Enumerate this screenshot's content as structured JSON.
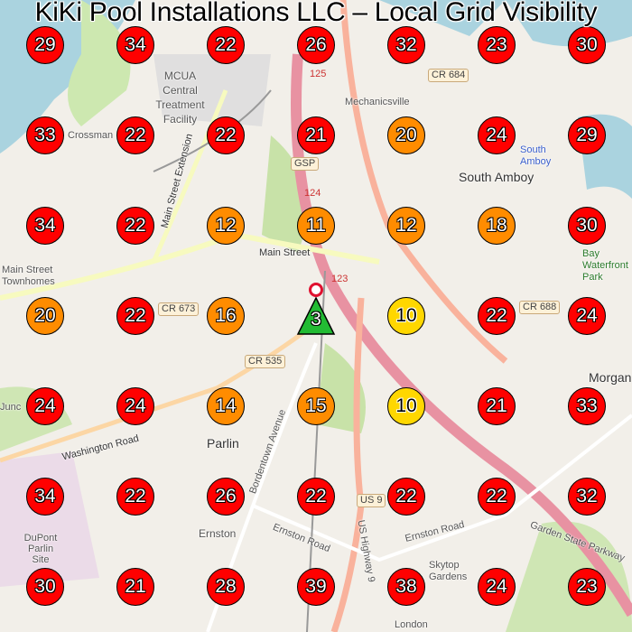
{
  "title": "KiKi Pool Installations LLC – Local Grid Visibility",
  "colors": {
    "red": "#ff0000",
    "orange": "#ff8c00",
    "yellow": "#ffd700",
    "green": "#22bb33",
    "pin": "#e0102f",
    "water": "#aad3df",
    "land": "#f2efe9"
  },
  "grid": [
    [
      29,
      34,
      22,
      26,
      32,
      23,
      30
    ],
    [
      33,
      22,
      22,
      21,
      20,
      24,
      29
    ],
    [
      34,
      22,
      12,
      11,
      12,
      18,
      30
    ],
    [
      20,
      22,
      16,
      3,
      10,
      22,
      24
    ],
    [
      24,
      24,
      14,
      15,
      10,
      21,
      33
    ],
    [
      34,
      22,
      26,
      22,
      22,
      22,
      32
    ],
    [
      30,
      21,
      28,
      39,
      38,
      24,
      23
    ]
  ],
  "center_marker": {
    "label": "3",
    "shape": "triangle",
    "icon": "location-pin-icon"
  },
  "map_labels": {
    "mcua": "MCUA Central Treatment Facility",
    "mechanicsville": "Mechanicsville",
    "crossman": "Crossman",
    "south_amboy": "South Amboy",
    "south_amboy_station": "South Amboy",
    "main_street": "Main Street",
    "main_street_ext": "Main Street Extension",
    "townhomes": "Main Street Townhomes",
    "washington_road": "Washington Road",
    "parlin": "Parlin",
    "ernston": "Ernston",
    "ernston_road": "Ernston Road",
    "bordentown_avenue": "Bordentown Avenue",
    "us_highway_9": "US Highway 9",
    "garden_state_parkway": "Garden State Parkway",
    "morgan": "Morgan",
    "dupont": "DuPont Parlin Site",
    "skytop": "Skytop Gardens",
    "london": "London",
    "gsp": "GSP",
    "route_123": "123",
    "route_124": "124",
    "route_125": "125",
    "cr673": "CR 673",
    "cr535": "CR 535",
    "cr688": "CR 688",
    "cr684": "CR 684",
    "us9": "US 9",
    "ernston_road_s": "Ernston Road",
    "junction": "Junc",
    "waterfront": "Bay Waterfront Park"
  }
}
